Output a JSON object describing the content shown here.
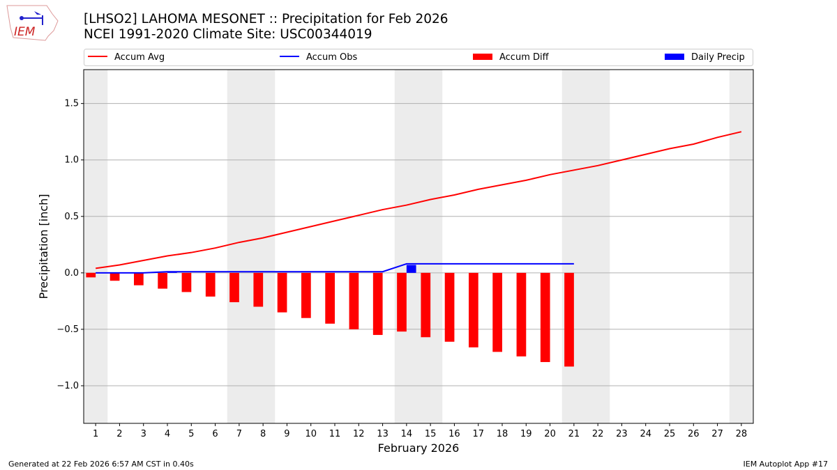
{
  "header": {
    "title": "[LHSO2] LAHOMA MESONET :: Precipitation for Feb 2026",
    "subtitle": "NCEI 1991-2020 Climate Site: USC00344019",
    "logo_text": "IEM"
  },
  "footer": {
    "left": "Generated at 22 Feb 2026 6:57 AM CST in 0.40s",
    "right": "IEM Autoplot App #17"
  },
  "chart_data": {
    "type": "bar",
    "xlabel": "February 2026",
    "ylabel": "Precipitation [inch]",
    "xlim": [
      0.5,
      28.5
    ],
    "ylim": [
      -1.333,
      1.8
    ],
    "x_ticks": [
      1,
      2,
      3,
      4,
      5,
      6,
      7,
      8,
      9,
      10,
      11,
      12,
      13,
      14,
      15,
      16,
      17,
      18,
      19,
      20,
      21,
      22,
      23,
      24,
      25,
      26,
      27,
      28
    ],
    "y_ticks": [
      -1.0,
      -0.5,
      0.0,
      0.5,
      1.0,
      1.5
    ],
    "y_tick_labels": [
      "−1.0",
      "−0.5",
      "0.0",
      "0.5",
      "1.0",
      "1.5"
    ],
    "grid": "horizontal",
    "legend_position": "top",
    "weekend_shading_days": [
      1,
      7,
      8,
      14,
      15,
      21,
      22,
      28
    ],
    "series": [
      {
        "name": "Accum Avg",
        "type": "line",
        "color": "#ff0000",
        "x": [
          1,
          2,
          3,
          4,
          5,
          6,
          7,
          8,
          9,
          10,
          11,
          12,
          13,
          14,
          15,
          16,
          17,
          18,
          19,
          20,
          21,
          22,
          23,
          24,
          25,
          26,
          27,
          28
        ],
        "values": [
          0.04,
          0.07,
          0.11,
          0.15,
          0.18,
          0.22,
          0.27,
          0.31,
          0.36,
          0.41,
          0.46,
          0.51,
          0.56,
          0.6,
          0.65,
          0.69,
          0.74,
          0.78,
          0.82,
          0.87,
          0.91,
          0.95,
          1.0,
          1.05,
          1.1,
          1.14,
          1.2,
          1.25
        ]
      },
      {
        "name": "Accum Obs",
        "type": "line",
        "color": "#0000ff",
        "x": [
          1,
          2,
          3,
          4,
          5,
          6,
          7,
          8,
          9,
          10,
          11,
          12,
          13,
          14,
          15,
          16,
          17,
          18,
          19,
          20,
          21
        ],
        "values": [
          0,
          0,
          0,
          0.01,
          0.01,
          0.01,
          0.01,
          0.01,
          0.01,
          0.01,
          0.01,
          0.01,
          0.01,
          0.08,
          0.08,
          0.08,
          0.08,
          0.08,
          0.08,
          0.08,
          0.08
        ]
      },
      {
        "name": "Accum Diff",
        "type": "bar",
        "color": "#ff0000",
        "x": [
          1,
          2,
          3,
          4,
          5,
          6,
          7,
          8,
          9,
          10,
          11,
          12,
          13,
          14,
          15,
          16,
          17,
          18,
          19,
          20,
          21
        ],
        "values": [
          -0.04,
          -0.07,
          -0.11,
          -0.14,
          -0.17,
          -0.21,
          -0.26,
          -0.3,
          -0.35,
          -0.4,
          -0.45,
          -0.5,
          -0.55,
          -0.52,
          -0.57,
          -0.61,
          -0.66,
          -0.7,
          -0.74,
          -0.79,
          -0.83
        ]
      },
      {
        "name": "Daily Precip",
        "type": "bar",
        "color": "#0000ff",
        "x": [
          4,
          14
        ],
        "values": [
          0.01,
          0.07
        ]
      }
    ]
  }
}
